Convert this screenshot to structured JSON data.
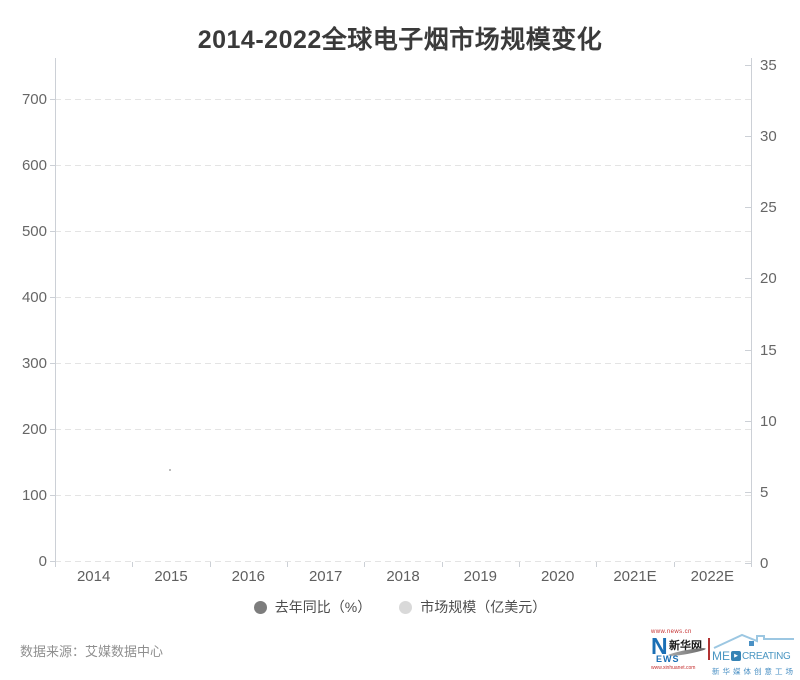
{
  "chart_data": {
    "type": "line",
    "title": "2014-2022全球电子烟市场规模变化",
    "categories": [
      "2014",
      "2015",
      "2016",
      "2017",
      "2018",
      "2019",
      "2020",
      "2021E",
      "2022E"
    ],
    "series": [
      {
        "name": "去年同比（%）",
        "axis": "left",
        "color": "#7d7d7d",
        "values": []
      },
      {
        "name": "市场规模（亿美元）",
        "axis": "right",
        "color": "#d9d9d9",
        "values": []
      }
    ],
    "left_axis": {
      "ticks": [
        0,
        100,
        200,
        300,
        400,
        500,
        600,
        700
      ],
      "range": [
        0,
        700
      ]
    },
    "right_axis": {
      "ticks": [
        0,
        5,
        10,
        15,
        20,
        25,
        30,
        35
      ],
      "range": [
        0,
        35
      ]
    },
    "grid": "horizontal dashed gridlines, plot area empty (no data rendered)",
    "legend_position": "bottom"
  },
  "footer": {
    "source": "数据来源：艾媒数据中心",
    "xinhua_logo": {
      "url_top": "www.news.cn",
      "n_letter": "N",
      "name_cn": "新华网",
      "ews": "EWS",
      "url_bottom": "www.xinhuanet.com",
      "blue": "#1a6fb5",
      "red": "#c53030"
    },
    "med_logo": {
      "me": "ME",
      "play_icon": "▶",
      "creating": "CREATING",
      "subtitle": "新华媒体创意工场",
      "blue": "#4a96c2"
    }
  },
  "colors": {
    "title_text": "#3a3a3a",
    "axis_label": "#666666",
    "axis_line": "#ccd0d6",
    "gridline": "#e4e4e4",
    "legend_text": "#4d4d4d"
  }
}
